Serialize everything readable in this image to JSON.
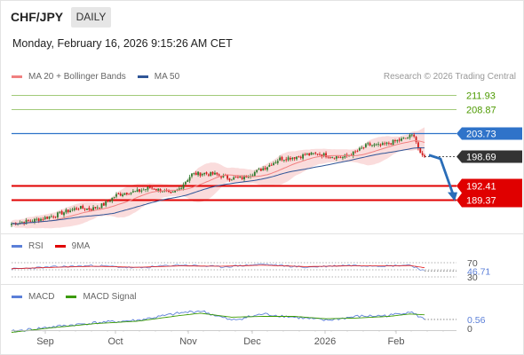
{
  "header": {
    "symbol": "CHF/JPY",
    "period_button": "DAILY",
    "datetime": "Monday, February 16, 2026 9:15:26 AM CET",
    "credit": "Research © 2026 Trading Central"
  },
  "legends": {
    "main": [
      {
        "label": "MA 20 + Bollinger Bands",
        "color": "#f08080"
      },
      {
        "label": "MA 50",
        "color": "#2f5597"
      }
    ],
    "rsi": [
      {
        "label": "RSI",
        "color": "#5b7fd8"
      },
      {
        "label": "9MA",
        "color": "#e00000"
      }
    ],
    "macd": [
      {
        "label": "MACD",
        "color": "#5b7fd8"
      },
      {
        "label": "MACD Signal",
        "color": "#3a9a00"
      }
    ]
  },
  "colors": {
    "resistance_green": "#4d9a00",
    "resistance_blue": "#2f73c9",
    "support_red": "#e00000",
    "pivot_dark": "#333333",
    "candle_up": "#2d7a2d",
    "candle_down": "#d11a1a",
    "bollinger_fill": "#f8d0d0",
    "ma20": "#f08080",
    "ma50": "#2f5597",
    "arrow": "#2a6db8"
  },
  "chart_data": [
    {
      "type": "candlestick",
      "title": "CHF/JPY",
      "xlabel": "",
      "ylabel": "",
      "x_tick_labels": [
        "Sep",
        "Oct",
        "Nov",
        "Dec",
        "2026",
        "Feb"
      ],
      "ylim": [
        182.2,
        213.8
      ],
      "price_levels": [
        {
          "value": 211.93,
          "label": "211.93",
          "kind": "resistance",
          "color": "#4d9a00"
        },
        {
          "value": 208.87,
          "label": "208.87",
          "kind": "resistance",
          "color": "#4d9a00"
        },
        {
          "value": 203.73,
          "label": "203.73",
          "kind": "resistance",
          "color": "#2f73c9"
        },
        {
          "value": 198.69,
          "label": "198.69",
          "kind": "last",
          "color": "#333333"
        },
        {
          "value": 192.41,
          "label": "192.41",
          "kind": "support",
          "color": "#e00000"
        },
        {
          "value": 189.37,
          "label": "189.37",
          "kind": "support",
          "color": "#e00000"
        }
      ],
      "forecast_path": [
        199.0,
        198.2,
        189.5
      ],
      "close_anchors": [
        [
          0,
          184.3
        ],
        [
          8,
          184.8
        ],
        [
          14,
          185.3
        ],
        [
          20,
          186.0
        ],
        [
          26,
          186.9
        ],
        [
          32,
          187.7
        ],
        [
          38,
          187.4
        ],
        [
          44,
          188.4
        ],
        [
          50,
          190.4
        ],
        [
          54,
          190.9
        ],
        [
          60,
          191.2
        ],
        [
          66,
          192.0
        ],
        [
          72,
          191.4
        ],
        [
          76,
          190.5
        ],
        [
          80,
          191.8
        ],
        [
          86,
          194.9
        ],
        [
          92,
          195.1
        ],
        [
          98,
          194.8
        ],
        [
          104,
          194.0
        ],
        [
          110,
          194.1
        ],
        [
          116,
          195.3
        ],
        [
          122,
          196.6
        ],
        [
          128,
          198.2
        ],
        [
          134,
          198.5
        ],
        [
          140,
          199.0
        ],
        [
          146,
          199.3
        ],
        [
          152,
          198.8
        ],
        [
          158,
          198.5
        ],
        [
          164,
          199.6
        ],
        [
          170,
          201.2
        ],
        [
          176,
          201.0
        ],
        [
          182,
          201.8
        ],
        [
          188,
          202.6
        ],
        [
          192,
          203.4
        ],
        [
          195,
          199.0
        ],
        [
          197,
          198.69
        ]
      ],
      "n_bars": 198
    },
    {
      "type": "line",
      "title": "RSI",
      "xlabel": "",
      "ylabel": "",
      "ylim": [
        30,
        70
      ],
      "levels": [
        70,
        50,
        30
      ],
      "last_value": 46.71,
      "tick_labels": [
        "70",
        "46.71",
        "30"
      ],
      "series": [
        {
          "name": "RSI",
          "values_anchor": [
            [
              0,
              52
            ],
            [
              20,
              58
            ],
            [
              40,
              62
            ],
            [
              60,
              55
            ],
            [
              80,
              64
            ],
            [
              100,
              58
            ],
            [
              120,
              66
            ],
            [
              140,
              57
            ],
            [
              160,
              63
            ],
            [
              180,
              61
            ],
            [
              190,
              64
            ],
            [
              197,
              46.71
            ]
          ]
        },
        {
          "name": "9MA",
          "values_anchor": [
            [
              0,
              53
            ],
            [
              20,
              57
            ],
            [
              40,
              60
            ],
            [
              60,
              57
            ],
            [
              80,
              61
            ],
            [
              100,
              60
            ],
            [
              120,
              63
            ],
            [
              140,
              59
            ],
            [
              160,
              61
            ],
            [
              180,
              61
            ],
            [
              190,
              62
            ],
            [
              197,
              56
            ]
          ]
        }
      ]
    },
    {
      "type": "line",
      "title": "MACD",
      "xlabel": "",
      "ylabel": "",
      "zero_label": "0",
      "last_value": 0.56,
      "last_label": "0.56",
      "series": [
        {
          "name": "MACD",
          "values_anchor": [
            [
              0,
              -0.2
            ],
            [
              20,
              0.1
            ],
            [
              40,
              0.35
            ],
            [
              60,
              0.5
            ],
            [
              80,
              0.95
            ],
            [
              90,
              1.1
            ],
            [
              105,
              0.5
            ],
            [
              120,
              0.9
            ],
            [
              135,
              0.7
            ],
            [
              150,
              0.5
            ],
            [
              165,
              0.75
            ],
            [
              180,
              0.8
            ],
            [
              190,
              1.05
            ],
            [
              197,
              0.56
            ]
          ]
        },
        {
          "name": "MACD Signal",
          "values_anchor": [
            [
              0,
              -0.25
            ],
            [
              20,
              0.05
            ],
            [
              40,
              0.3
            ],
            [
              60,
              0.45
            ],
            [
              80,
              0.8
            ],
            [
              90,
              0.95
            ],
            [
              105,
              0.7
            ],
            [
              120,
              0.75
            ],
            [
              135,
              0.75
            ],
            [
              150,
              0.6
            ],
            [
              165,
              0.65
            ],
            [
              180,
              0.75
            ],
            [
              190,
              0.9
            ],
            [
              197,
              0.85
            ]
          ]
        }
      ]
    }
  ]
}
